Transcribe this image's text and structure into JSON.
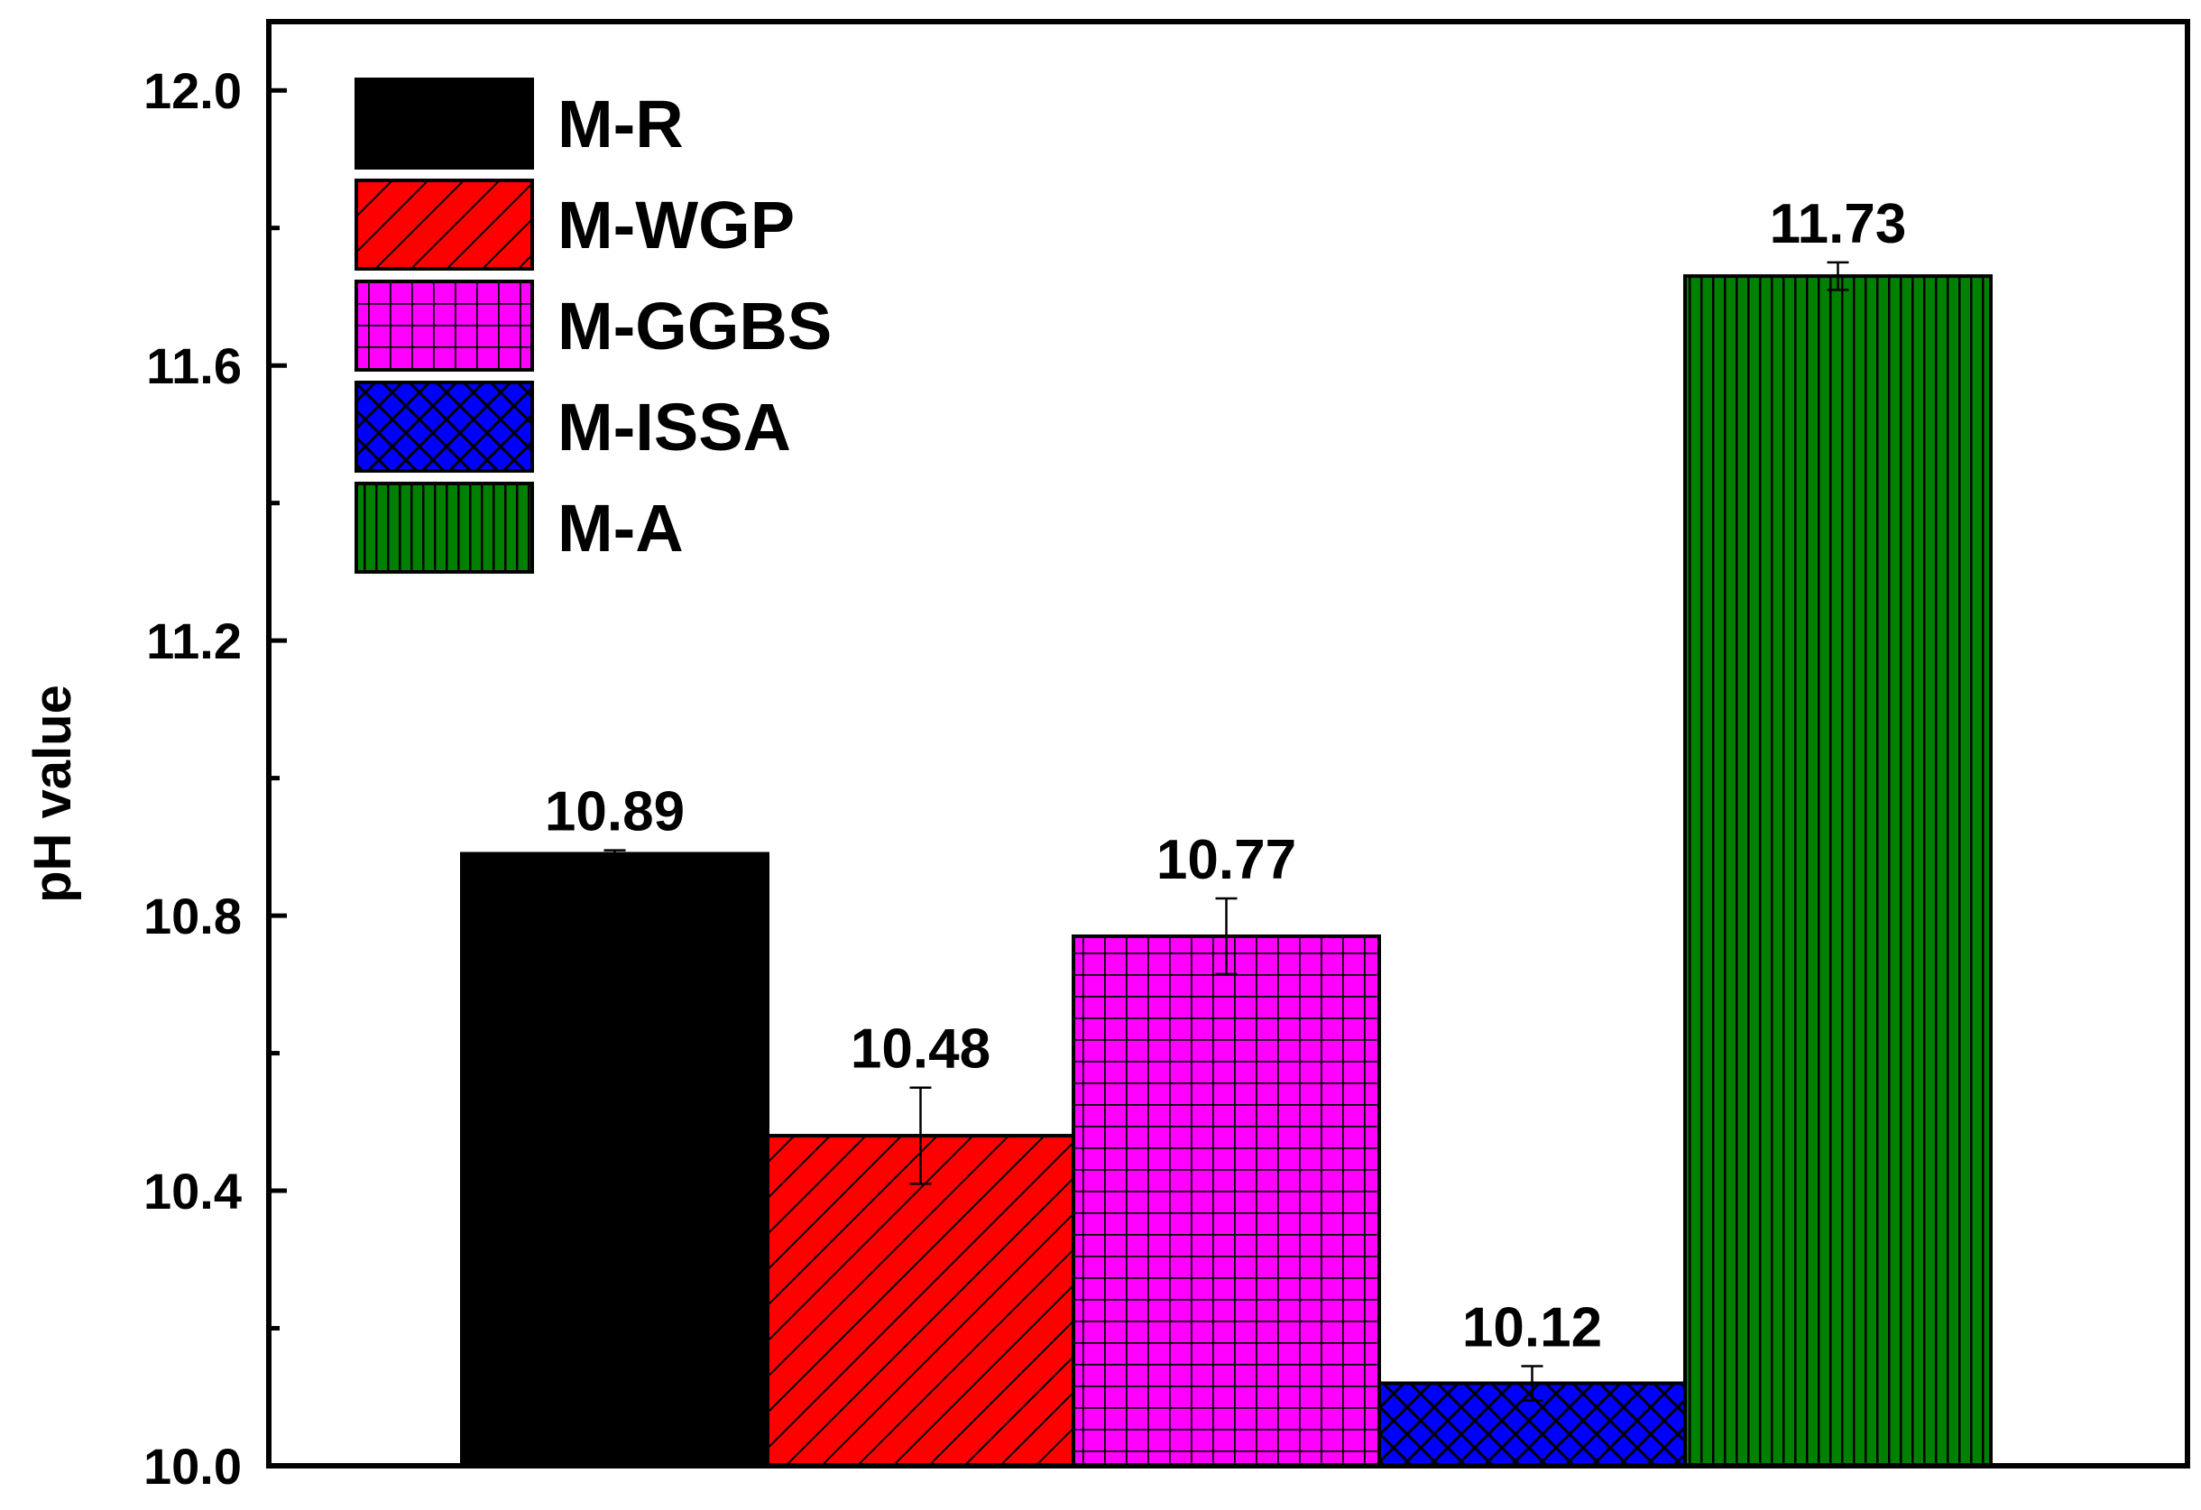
{
  "chart_data": {
    "type": "bar",
    "title": "",
    "xlabel": "",
    "ylabel": "pH value",
    "ylim": [
      10.0,
      12.1
    ],
    "y_ticks": [
      "10.0",
      "10.4",
      "10.8",
      "11.2",
      "11.6",
      "12.0"
    ],
    "y_tick_values": [
      10.0,
      10.4,
      10.8,
      11.2,
      11.6,
      12.0
    ],
    "y_minor_tick_values": [
      10.2,
      10.6,
      11.0,
      11.4,
      11.8
    ],
    "grid": false,
    "legend_position": "top-left",
    "series": [
      {
        "name": "M-R",
        "value": 10.89,
        "error": 0.005,
        "label": "10.89",
        "color": "#000000",
        "pattern": "solid"
      },
      {
        "name": "M-WGP",
        "value": 10.48,
        "error": 0.07,
        "label": "10.48",
        "color": "#ff0000",
        "pattern": "diagonal-hatch"
      },
      {
        "name": "M-GGBS",
        "value": 10.77,
        "error": 0.055,
        "label": "10.77",
        "color": "#ff00ff",
        "pattern": "grid-hatch"
      },
      {
        "name": "M-ISSA",
        "value": 10.12,
        "error": 0.025,
        "label": "10.12",
        "color": "#0000ff",
        "pattern": "cross-hatch"
      },
      {
        "name": "M-A",
        "value": 11.73,
        "error": 0.02,
        "label": "11.73",
        "color": "#008000",
        "pattern": "vertical-lines"
      }
    ]
  }
}
